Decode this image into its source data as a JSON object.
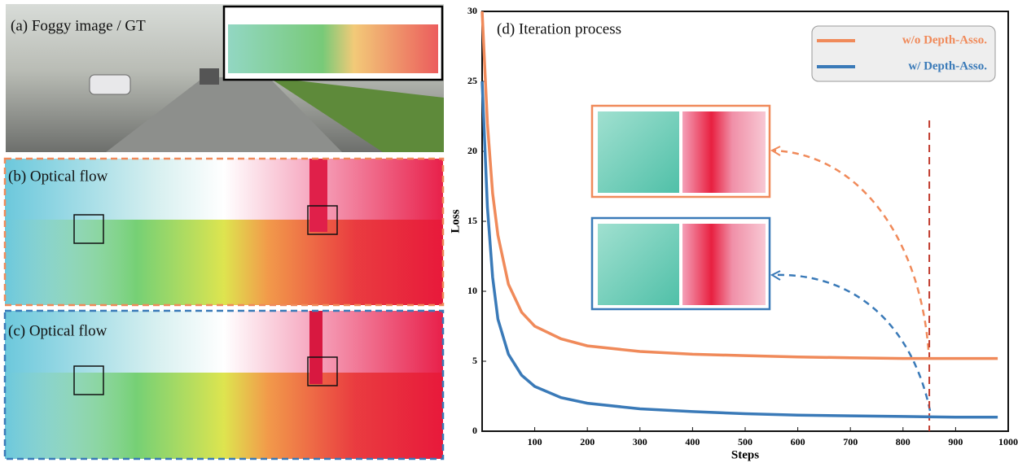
{
  "panels": [
    {
      "label": "(a) Foggy image / GT"
    },
    {
      "label": "(b) Optical flow"
    },
    {
      "label": "(c) Optical flow"
    }
  ],
  "chart_data": {
    "type": "line",
    "title": "(d) Iteration process",
    "x_label": "Steps",
    "y_label": "Loss",
    "x": [
      0,
      10,
      20,
      30,
      50,
      75,
      100,
      150,
      200,
      300,
      400,
      500,
      600,
      700,
      800,
      900,
      980
    ],
    "series": [
      {
        "name": "w/o Depth-Asso.",
        "color": "#f08a5a",
        "values": [
          30,
          22,
          17,
          14,
          10.5,
          8.5,
          7.5,
          6.6,
          6.1,
          5.7,
          5.5,
          5.4,
          5.3,
          5.25,
          5.2,
          5.2,
          5.2
        ]
      },
      {
        "name": "w/ Depth-Asso.",
        "color": "#3a7ab8",
        "values": [
          25,
          16,
          11,
          8,
          5.5,
          4,
          3.2,
          2.4,
          2,
          1.6,
          1.4,
          1.25,
          1.15,
          1.1,
          1.05,
          1.0,
          1.0
        ]
      }
    ],
    "xlim": [
      0,
      1000
    ],
    "ylim": [
      0,
      30
    ],
    "xticks": [
      100,
      200,
      300,
      400,
      500,
      600,
      700,
      800,
      900,
      1000
    ],
    "yticks": [
      0,
      5,
      10,
      15,
      20,
      25,
      30
    ],
    "vline_x": 850,
    "vline_color": "#c0392b",
    "legend": "upper right"
  }
}
